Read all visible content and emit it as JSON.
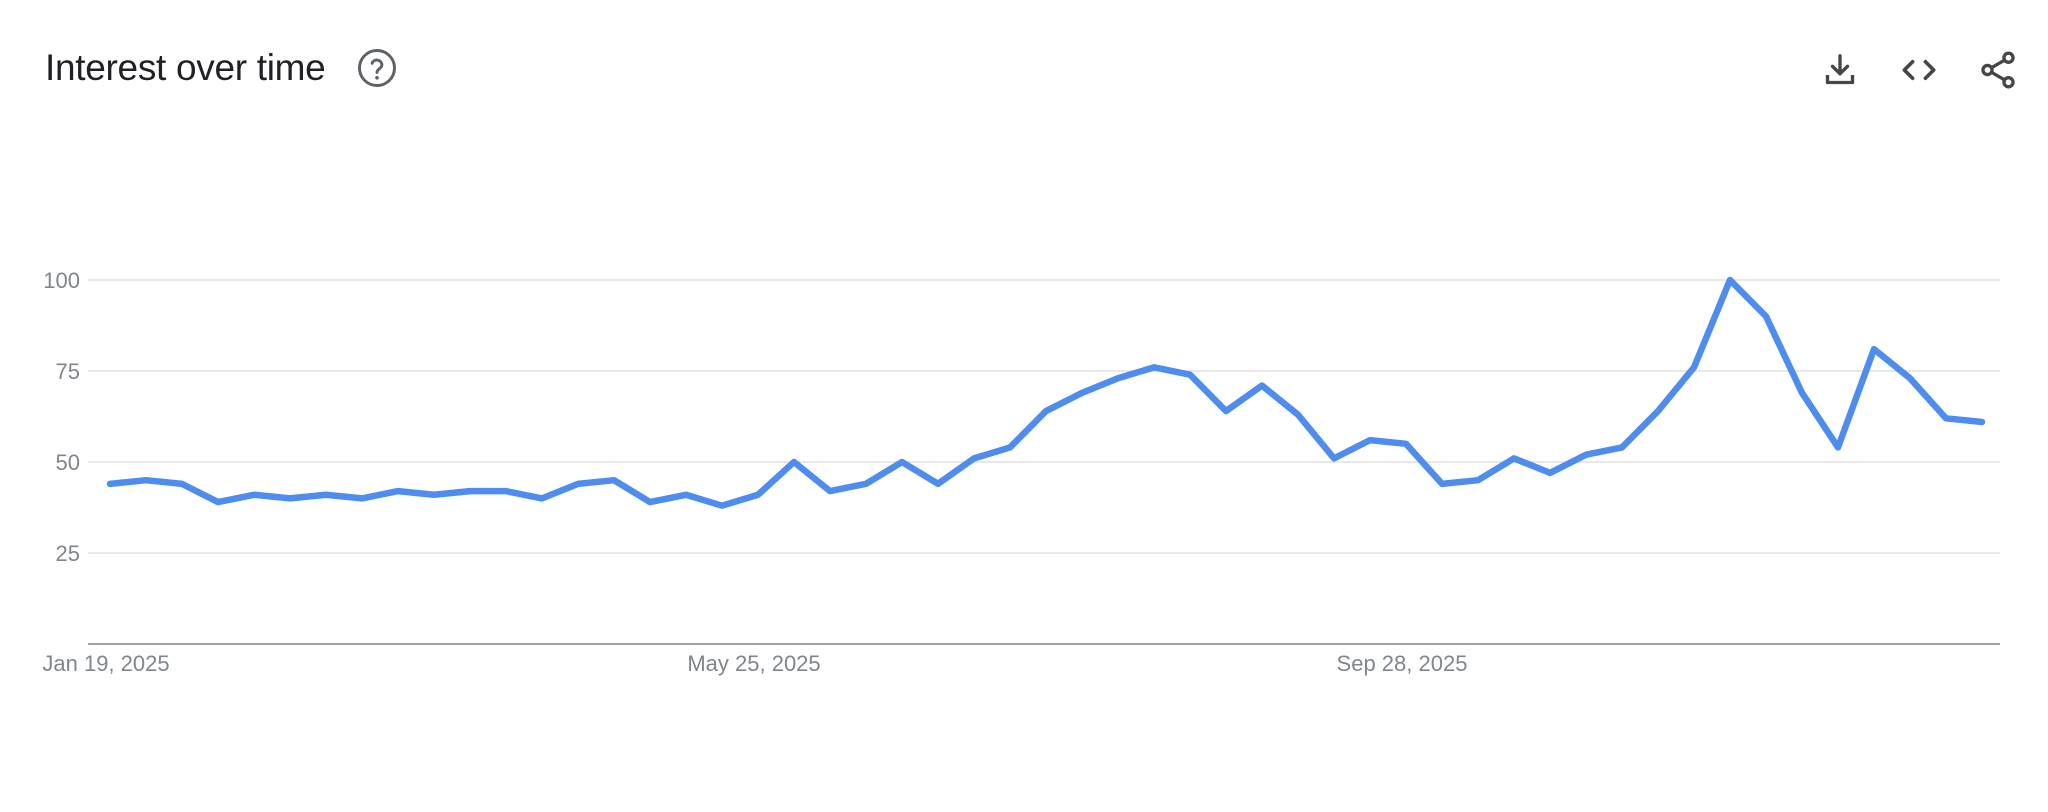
{
  "header": {
    "title": "Interest over time"
  },
  "toolbar": {
    "icons": [
      "download-icon",
      "embed-code-icon",
      "share-icon"
    ]
  },
  "colors": {
    "line": "#4e8cee",
    "grid": "#e0e0e0",
    "axis": "#9aa0a6",
    "text": "#202124",
    "tick": "#80868b"
  },
  "chart_data": {
    "type": "line",
    "title": "Interest over time",
    "xlabel": "",
    "ylabel": "",
    "ylim": [
      0,
      100
    ],
    "yticks": [
      25,
      50,
      75,
      100
    ],
    "xtick_labels": [
      {
        "label": "Jan 19, 2025",
        "index": 0
      },
      {
        "label": "May 25, 2025",
        "index": 18
      },
      {
        "label": "Sep 28, 2025",
        "index": 36
      }
    ],
    "grid": true,
    "series": [
      {
        "values": [
          44,
          45,
          44,
          39,
          41,
          40,
          41,
          40,
          42,
          41,
          42,
          42,
          40,
          44,
          45,
          39,
          41,
          38,
          41,
          50,
          42,
          44,
          50,
          44,
          51,
          54,
          64,
          69,
          73,
          76,
          74,
          64,
          71,
          63,
          51,
          56,
          55,
          44,
          45,
          51,
          47,
          52,
          54,
          64,
          76,
          100,
          90,
          69,
          54,
          81,
          73,
          62,
          61
        ]
      }
    ]
  }
}
